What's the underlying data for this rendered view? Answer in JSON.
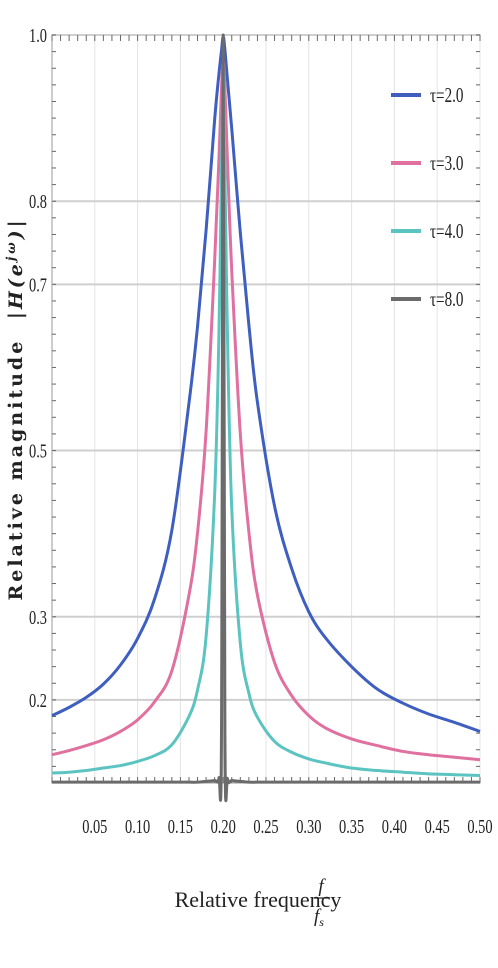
{
  "chart_data": {
    "type": "line",
    "title": "",
    "xlabel": "Relative frequency",
    "xlabel_fraction": {
      "numerator": "f",
      "denominator": "f",
      "denominator_subscript": "s"
    },
    "ylabel": "Relative magnitude",
    "ylabel_math": "|H(e",
    "ylabel_math_sup": "jω",
    "ylabel_math_end": ")|",
    "xlim": [
      0.0,
      0.5
    ],
    "ylim": [
      0.1,
      1.0
    ],
    "x_ticks": [
      0.05,
      0.1,
      0.15,
      0.2,
      0.25,
      0.3,
      0.35,
      0.4,
      0.45,
      0.5
    ],
    "x_tick_labels": [
      "0.05",
      "0.10",
      "0.15",
      "0.20",
      "0.25",
      "0.30",
      "0.35",
      "0.40",
      "0.45",
      "0.50"
    ],
    "y_ticks": [
      0.2,
      0.3,
      0.5,
      0.7,
      0.8,
      1.0
    ],
    "y_tick_labels": [
      "0.2",
      "0.3",
      "0.5",
      "0.7",
      "0.8",
      "1.0"
    ],
    "grid": true,
    "legend_position": "right",
    "center_frequency": 0.2,
    "x": [
      0.0,
      0.02,
      0.04,
      0.06,
      0.08,
      0.1,
      0.12,
      0.14,
      0.16,
      0.17,
      0.18,
      0.19,
      0.195,
      0.198,
      0.2,
      0.202,
      0.205,
      0.21,
      0.22,
      0.23,
      0.24,
      0.26,
      0.28,
      0.3,
      0.32,
      0.35,
      0.38,
      0.41,
      0.44,
      0.47,
      0.5
    ],
    "series": [
      {
        "name": "τ=2.0",
        "color": "#3e5fbf",
        "width": 3,
        "values": [
          0.181,
          0.191,
          0.203,
          0.219,
          0.242,
          0.274,
          0.322,
          0.404,
          0.557,
          0.649,
          0.765,
          0.898,
          0.953,
          0.981,
          0.998,
          0.982,
          0.946,
          0.887,
          0.762,
          0.651,
          0.558,
          0.433,
          0.358,
          0.306,
          0.274,
          0.24,
          0.213,
          0.196,
          0.183,
          0.173,
          0.162
        ]
      },
      {
        "name": "τ=3.0",
        "color": "#e0709f",
        "width": 3,
        "values": [
          0.134,
          0.139,
          0.145,
          0.152,
          0.162,
          0.176,
          0.198,
          0.235,
          0.326,
          0.401,
          0.523,
          0.728,
          0.85,
          0.935,
          0.968,
          0.936,
          0.848,
          0.716,
          0.52,
          0.402,
          0.326,
          0.245,
          0.205,
          0.181,
          0.166,
          0.153,
          0.145,
          0.138,
          0.134,
          0.131,
          0.128
        ]
      },
      {
        "name": "τ=4.0",
        "color": "#5cc4c0",
        "width": 3,
        "values": [
          0.112,
          0.113,
          0.115,
          0.118,
          0.121,
          0.126,
          0.133,
          0.146,
          0.18,
          0.212,
          0.276,
          0.447,
          0.64,
          0.838,
          0.955,
          0.836,
          0.638,
          0.43,
          0.268,
          0.208,
          0.179,
          0.15,
          0.137,
          0.129,
          0.124,
          0.118,
          0.115,
          0.113,
          0.111,
          0.11,
          0.109
        ]
      },
      {
        "name": "τ=8.0",
        "color": "#6b6b6b",
        "width": 3,
        "values": [
          0.101,
          0.101,
          0.101,
          0.101,
          0.101,
          0.101,
          0.101,
          0.101,
          0.101,
          0.101,
          0.102,
          0.103,
          0.106,
          0.16,
          1.0,
          0.16,
          0.105,
          0.103,
          0.102,
          0.101,
          0.101,
          0.101,
          0.101,
          0.101,
          0.101,
          0.101,
          0.101,
          0.101,
          0.101,
          0.101,
          0.101
        ]
      }
    ]
  }
}
